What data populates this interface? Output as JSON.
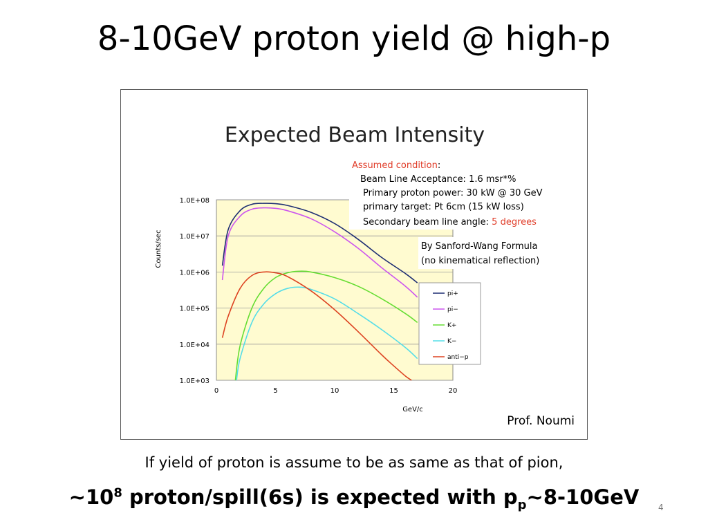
{
  "slide": {
    "title": "8-10GeV proton yield @ high-p",
    "caption": "If yield of proton is assume to be as same as that of pion,",
    "conclusion": {
      "prefix": "~10",
      "exponent": "8",
      "middle": " proton/spill(6s) is expected with p",
      "subscript": "p",
      "suffix": "~8-10GeV"
    },
    "page_number": "4",
    "credit": "Prof. Noumi"
  },
  "colors": {
    "plot_background": "#fffbd0",
    "pi_plus": "#1f2f73",
    "pi_minus": "#cc55ee",
    "k_plus": "#66dd33",
    "k_minus": "#55dde8",
    "anti_p": "#dd4422",
    "accent_red": "#e03c28"
  },
  "chart_data": {
    "type": "line",
    "title": "Expected Beam Intensity",
    "xlabel": "GeV/c",
    "ylabel": "Counts/sec",
    "xlim": [
      0,
      20
    ],
    "ylim": [
      1000,
      100000000
    ],
    "yscale": "log",
    "x_ticks": [
      "0",
      "5",
      "10",
      "15",
      "20"
    ],
    "y_ticks": [
      "1.0E+03",
      "1.0E+04",
      "1.0E+05",
      "1.0E+06",
      "1.0E+07",
      "1.0E+08"
    ],
    "grid": "horizontal",
    "legend_position": "right",
    "annotations": {
      "condition_label": "Assumed condition",
      "condition_colon": ":",
      "lines": [
        "Beam Line Acceptance: 1.6 msr*%",
        "Primary proton power: 30 kW @ 30 GeV",
        "primary target: Pt 6cm (15 kW loss)"
      ],
      "angle_prefix": "Secondary beam line angle: ",
      "angle_value": "5 degrees",
      "formula_line1": "By Sanford-Wang Formula",
      "formula_line2": " (no kinematical reflection)"
    },
    "series": [
      {
        "name": "pi+",
        "color_key": "pi_plus",
        "x": [
          0.5,
          1,
          2,
          3,
          4,
          5,
          6,
          8,
          10,
          12,
          14,
          16,
          17
        ],
        "y": [
          1500000,
          15000000,
          50000000,
          75000000,
          80000000,
          78000000,
          70000000,
          45000000,
          22000000,
          8000000,
          2500000,
          900000,
          500000
        ]
      },
      {
        "name": "pi−",
        "color_key": "pi_minus",
        "x": [
          0.5,
          1,
          2,
          3,
          4,
          5,
          6,
          8,
          10,
          12,
          14,
          16,
          17
        ],
        "y": [
          600000,
          10000000,
          35000000,
          55000000,
          60000000,
          58000000,
          50000000,
          30000000,
          13000000,
          4500000,
          1300000,
          400000,
          200000
        ]
      },
      {
        "name": "K+",
        "color_key": "k_plus",
        "x": [
          1.6,
          2,
          3,
          4,
          5,
          6,
          7,
          8,
          10,
          12,
          14,
          16,
          17
        ],
        "y": [
          1000,
          9000,
          100000,
          350000,
          700000,
          950000,
          1050000,
          1000000,
          700000,
          400000,
          180000,
          70000,
          40000
        ]
      },
      {
        "name": "K−",
        "color_key": "k_minus",
        "x": [
          1.7,
          2,
          3,
          4,
          5,
          6,
          7,
          8,
          10,
          12,
          14,
          16,
          17
        ],
        "y": [
          1000,
          4000,
          40000,
          130000,
          250000,
          350000,
          380000,
          330000,
          180000,
          70000,
          25000,
          8000,
          4000
        ]
      },
      {
        "name": "anti−p",
        "color_key": "anti_p",
        "x": [
          0.5,
          1,
          2,
          3,
          4,
          5,
          6,
          8,
          10,
          12,
          14,
          15,
          16,
          16.5
        ],
        "y": [
          15000,
          60000,
          350000,
          800000,
          1000000,
          950000,
          750000,
          300000,
          90000,
          22000,
          5000,
          2500,
          1300,
          1000
        ]
      }
    ]
  }
}
